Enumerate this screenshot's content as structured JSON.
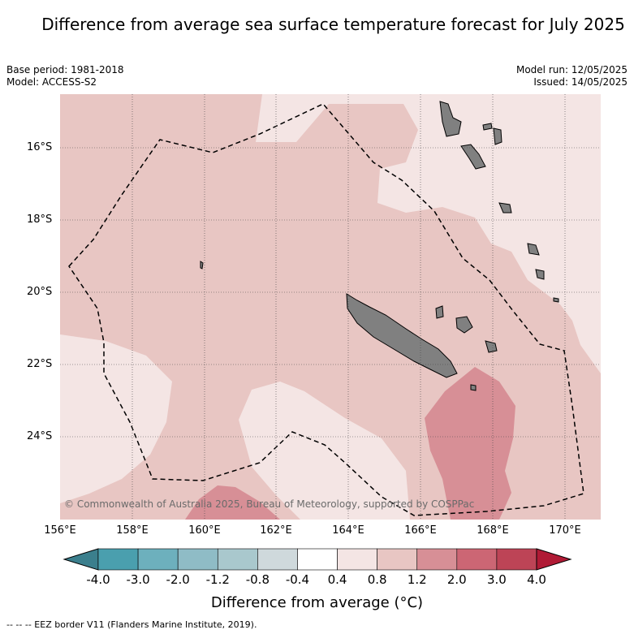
{
  "title": "Difference from average sea surface temperature forecast for July 2025",
  "base_period": "Base period: 1981-2018",
  "model": "Model: ACCESS-S2",
  "model_run": "Model run: 12/05/2025",
  "issued": "Issued: 14/05/2025",
  "copyright": "© Commonwealth of Australia 2025, Bureau of Meteorology, supported by COSPPac",
  "latitude_labels": [
    "16°S",
    "18°S",
    "20°S",
    "22°S",
    "24°S"
  ],
  "longitude_labels": [
    "156°E",
    "158°E",
    "160°E",
    "162°E",
    "164°E",
    "166°E",
    "168°E",
    "170°E"
  ],
  "colorbar": {
    "ticks": [
      "-4.0",
      "-3.0",
      "-2.0",
      "-1.2",
      "-0.8",
      "-0.4",
      "0.4",
      "0.8",
      "1.2",
      "2.0",
      "3.0",
      "4.0"
    ],
    "colors": [
      "#4a9fae",
      "#6db0bd",
      "#8fbcc6",
      "#a9c8cd",
      "#cfd9dc",
      "#ffffff",
      "#f4e5e4",
      "#e8c6c3",
      "#d78f96",
      "#cc6674",
      "#bd4456"
    ],
    "under_color": "#3b7f8d",
    "over_color": "#b01a35",
    "label": "Difference from average (°C)"
  },
  "map": {
    "background_class_color": "#e8c6c3",
    "light_class_color": "#f4e5e4",
    "warm_class_color": "#d78f96",
    "land_color": "#808080"
  },
  "footnote": "--  --  -- EEZ border V11 (Flanders Marine Institute, 2019)."
}
